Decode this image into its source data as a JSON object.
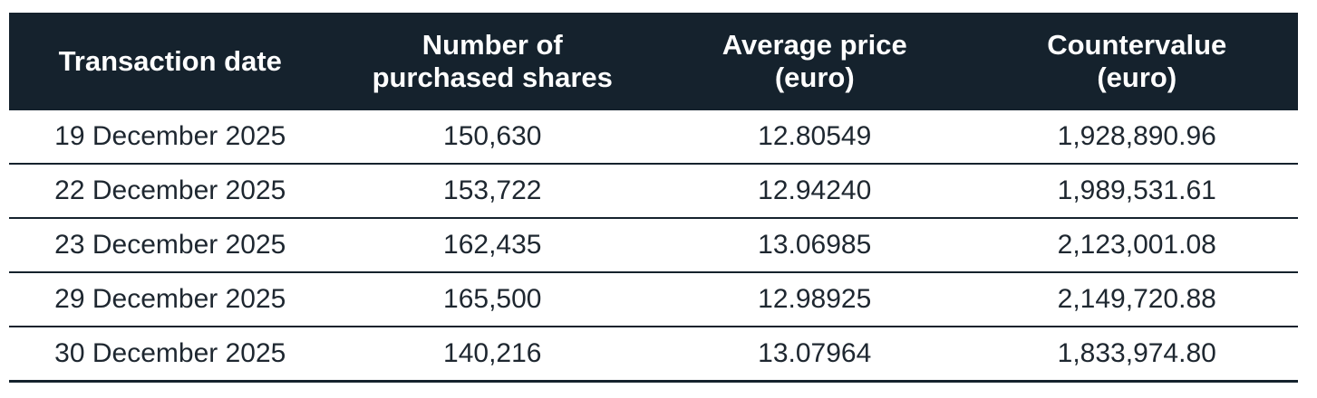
{
  "table": {
    "columns": [
      {
        "label": "Transaction date"
      },
      {
        "label": "Number of\npurchased shares"
      },
      {
        "label": "Average price\n(euro)"
      },
      {
        "label": "Countervalue\n(euro)"
      }
    ],
    "rows": [
      {
        "date": "19 December 2025",
        "shares": "150,630",
        "avg_price": "12.80549",
        "countervalue": "1,928,890.96"
      },
      {
        "date": "22 December 2025",
        "shares": "153,722",
        "avg_price": "12.94240",
        "countervalue": "1,989,531.61"
      },
      {
        "date": "23 December 2025",
        "shares": "162,435",
        "avg_price": "13.06985",
        "countervalue": "2,123,001.08"
      },
      {
        "date": "29 December 2025",
        "shares": "165,500",
        "avg_price": "12.98925",
        "countervalue": "2,149,720.88"
      },
      {
        "date": "30 December 2025",
        "shares": "140,216",
        "avg_price": "13.07964",
        "countervalue": "1,833,974.80"
      }
    ],
    "colors": {
      "header_bg": "#15222d",
      "header_text": "#ffffff",
      "row_text": "#1e2730",
      "rule_line": "#15222d",
      "page_bg": "#ffffff"
    }
  }
}
